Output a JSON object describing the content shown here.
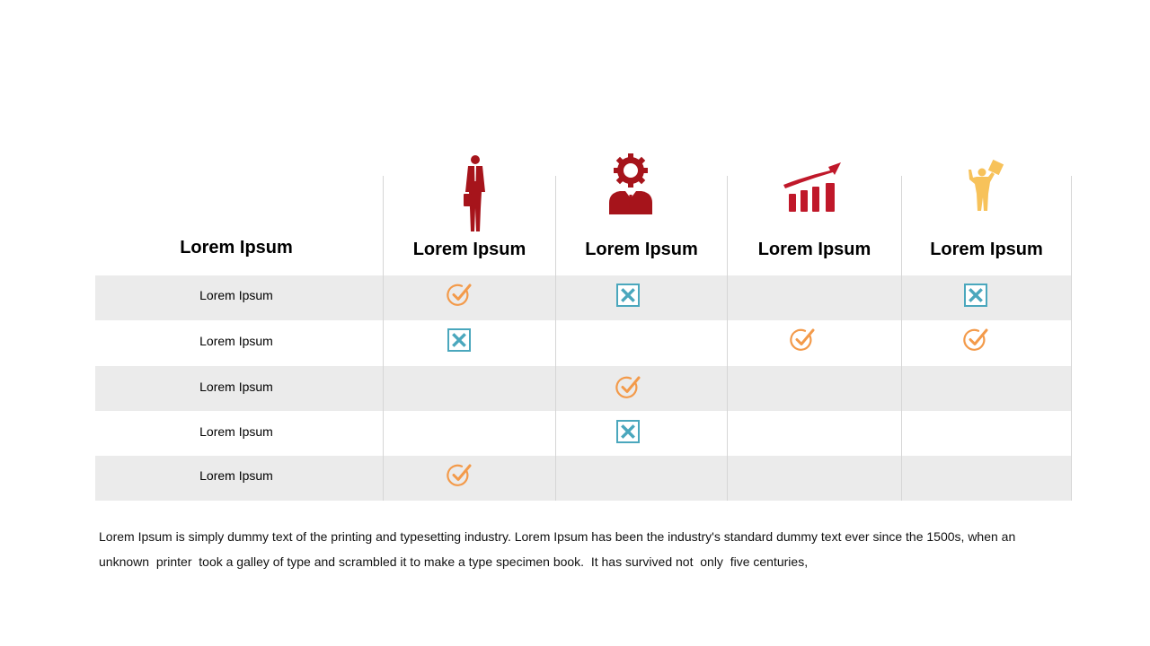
{
  "header": {
    "row_header": "Lorem Ipsum",
    "columns": [
      {
        "label": "Lorem Ipsum",
        "icon": "businessman-icon"
      },
      {
        "label": "Lorem Ipsum",
        "icon": "gear-person-icon"
      },
      {
        "label": "Lorem Ipsum",
        "icon": "growth-chart-icon"
      },
      {
        "label": "Lorem Ipsum",
        "icon": "person-holding-box-icon"
      }
    ]
  },
  "rows": [
    {
      "label": "Lorem Ipsum",
      "cells": [
        "check",
        "cross",
        "",
        "cross"
      ]
    },
    {
      "label": "Lorem Ipsum",
      "cells": [
        "cross",
        "",
        "check",
        "check"
      ]
    },
    {
      "label": "Lorem Ipsum",
      "cells": [
        "",
        "check",
        "",
        ""
      ]
    },
    {
      "label": "Lorem Ipsum",
      "cells": [
        "",
        "cross",
        "",
        ""
      ]
    },
    {
      "label": "Lorem Ipsum",
      "cells": [
        "check",
        "",
        "",
        ""
      ]
    }
  ],
  "description": {
    "line1": "Lorem Ipsum is simply dummy text of the printing and typesetting industry. Lorem Ipsum has been the industry's standard dummy text ever since the 1500s, when an",
    "line2": "unknown  printer  took a galley of type and scrambled it to make a type specimen book.  It has survived not  only  five centuries,"
  },
  "colors": {
    "icon_red": "#a6141b",
    "chart_red": "#c0182a",
    "figure_yellow": "#f7c25a",
    "check_orange": "#f39a4a",
    "cross_teal": "#4aa7bd"
  }
}
